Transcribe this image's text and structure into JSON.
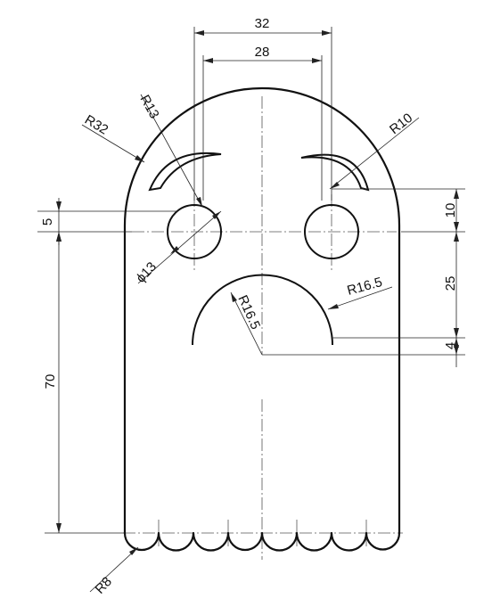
{
  "figure": {
    "type": "technical-drawing",
    "subject": "ghost face part"
  },
  "dimensions": {
    "top_outer_width": "32",
    "top_inner_width": "28",
    "head_radius": "R32",
    "brow_radius_left": "R13",
    "brow_radius_right": "R10",
    "eye_diameter": "ϕ13",
    "eye_offset": "5",
    "right_top_gap": "10",
    "right_mid_gap": "25",
    "right_low_gap": "4",
    "mouth_outer_radius": "R16.5",
    "mouth_inner_radius": "R16.5",
    "body_height": "70",
    "scallop_radius": "R8"
  }
}
